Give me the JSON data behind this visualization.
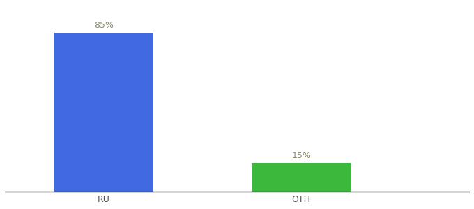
{
  "categories": [
    "RU",
    "OTH"
  ],
  "values": [
    85,
    15
  ],
  "bar_colors": [
    "#4169E1",
    "#3CB83C"
  ],
  "label_color": "#8B8B6B",
  "label_fontsize": 9,
  "tick_fontsize": 9,
  "tick_color": "#555555",
  "background_color": "#ffffff",
  "ylim": [
    0,
    100
  ],
  "bar_width": 0.5,
  "x_positions": [
    1,
    2
  ],
  "xlim": [
    0.5,
    2.85
  ]
}
